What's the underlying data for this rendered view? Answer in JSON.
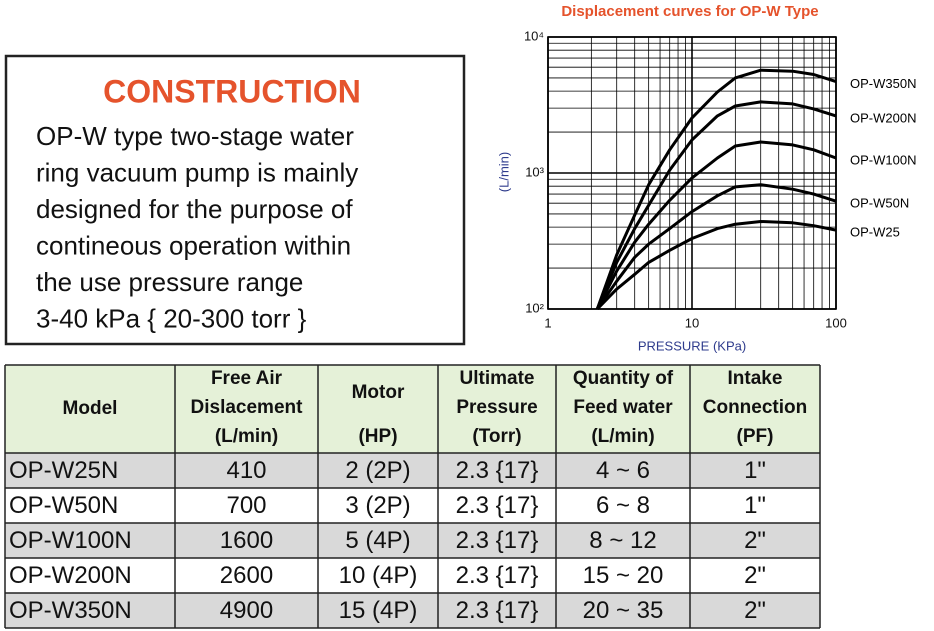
{
  "construction": {
    "title": "CONSTRUCTION",
    "lines": [
      "OP-W type two-stage water",
      "ring vacuum pump is mainly",
      "designed for the purpose of",
      "contineous operation within",
      "the use pressure range",
      "3-40 kPa { 20-300 torr }"
    ]
  },
  "chart_data": {
    "type": "line",
    "title": "Displacement curves for OP-W Type",
    "x_label": "PRESSURE (KPa)",
    "y_label": "(L/min)",
    "log_x": true,
    "log_y": true,
    "grid": true,
    "minor_grid": true,
    "xlim": [
      1,
      100
    ],
    "ylim": [
      100,
      10000
    ],
    "xticks": [
      1,
      10,
      100
    ],
    "yticks": [
      {
        "value": 100,
        "label": "10²"
      },
      {
        "value": 1000,
        "label": "10³"
      },
      {
        "value": 10000,
        "label": "10⁴"
      }
    ],
    "x": [
      2.2,
      3,
      4,
      5,
      7,
      10,
      15,
      20,
      30,
      50,
      70,
      100
    ],
    "series": [
      {
        "name": "OP-W350N",
        "color": "#000000",
        "values": [
          100,
          250,
          490,
          820,
          1480,
          2540,
          3940,
          5000,
          5700,
          5600,
          5300,
          4700
        ]
      },
      {
        "name": "OP-W200N",
        "color": "#000000",
        "values": [
          100,
          220,
          390,
          580,
          1050,
          1750,
          2630,
          3110,
          3330,
          3220,
          2960,
          2630
        ]
      },
      {
        "name": "OP-W100N",
        "color": "#000000",
        "values": [
          100,
          190,
          310,
          420,
          630,
          920,
          1290,
          1580,
          1690,
          1610,
          1480,
          1290
        ]
      },
      {
        "name": "OP-W50N",
        "color": "#000000",
        "values": [
          100,
          160,
          240,
          300,
          390,
          520,
          680,
          790,
          820,
          760,
          700,
          620
        ]
      },
      {
        "name": "OP-W25",
        "color": "#000000",
        "values": [
          100,
          140,
          180,
          220,
          270,
          330,
          390,
          420,
          440,
          430,
          410,
          380
        ]
      }
    ]
  },
  "table": {
    "header": [
      [
        "Model"
      ],
      [
        "Free Air",
        "Dislacement",
        "(L/min)"
      ],
      [
        "Motor",
        "(HP)"
      ],
      [
        "Ultimate",
        "Pressure",
        "(Torr)"
      ],
      [
        "Quantity of",
        "Feed water",
        "(L/min)"
      ],
      [
        "Intake",
        "Connection",
        "(PF)"
      ]
    ],
    "rows": [
      [
        "OP-W25N",
        "410",
        "2 (2P)",
        "2.3 {17}",
        "4 ~ 6",
        "1\""
      ],
      [
        "OP-W50N",
        "700",
        "3 (2P)",
        "2.3 {17}",
        "6 ~ 8",
        "1\""
      ],
      [
        "OP-W100N",
        "1600",
        "5 (4P)",
        "2.3 {17}",
        "8 ~ 12",
        "2\""
      ],
      [
        "OP-W200N",
        "2600",
        "10 (4P)",
        "2.3 {17}",
        "15 ~ 20",
        "2\""
      ],
      [
        "OP-W350N",
        "4900",
        "15 (4P)",
        "2.3 {17}",
        "20 ~ 35",
        "2\""
      ]
    ]
  }
}
